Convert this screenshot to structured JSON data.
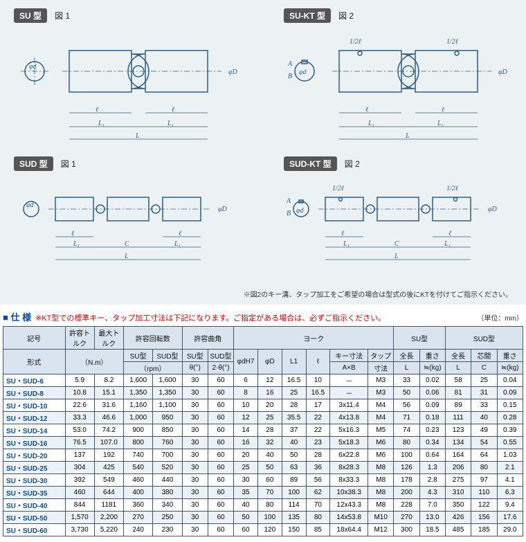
{
  "diagrams": {
    "bg_color": "#ecf2f4",
    "line_color": "#2b5c8a",
    "badge_bg": "#555555",
    "badge_fg": "#ffffff",
    "su": {
      "badge": "SU 型",
      "fig": "図 1"
    },
    "sukt": {
      "badge": "SU-KT 型",
      "fig": "図 2"
    },
    "sud": {
      "badge": "SUD 型",
      "fig": "図 1"
    },
    "sudkt": {
      "badge": "SUD-KT 型",
      "fig": "図 2"
    },
    "dims": {
      "d": "φd",
      "D": "φD",
      "l": "ℓ",
      "L1": "L₁",
      "L": "L",
      "C": "C",
      "A": "A",
      "B": "B",
      "half_l": "1/2ℓ"
    },
    "footnote": "※図2のキー溝、タップ加工をご希望の場合は型式の後にKTを付けてご指示ください。"
  },
  "spec": {
    "title": "■ 仕  様",
    "warn": "※KT型での標準キー、タップ加工寸法は下記になります。ご指定がある場合は、必ずご指示ください。",
    "unit": "（単位：mm）",
    "header": {
      "model_top": "記号",
      "model_bottom": "形式",
      "torque_allow": "許容トルク",
      "torque_max": "最大トルク",
      "nm": "（N.m）",
      "rpm_group": "許容回転数",
      "su_type": "SU型",
      "sud_type": "SUD型",
      "rpm": "（rpm）",
      "bend_group": "許容曲角",
      "theta": "θ(°)",
      "theta2": "2·θ(°)",
      "yoke_group": "ヨーク",
      "phi_dH7": "φdH7",
      "phi_D": "φD",
      "L1": "L1",
      "ell": "ℓ",
      "key": "キー寸法",
      "AxB": "A×B",
      "tap": "タップ",
      "tap_dim": "寸法",
      "su_group": "SU型",
      "sud_group": "SUD型",
      "total_len": "全長",
      "weight": "重さ",
      "core": "芯間",
      "L": "L",
      "approx_kg": "≒(kg)",
      "C": "C"
    },
    "rows": [
      {
        "m": "SU・SUD-6",
        "ta": "5.9",
        "tm": "8.2",
        "rsu": "1,600",
        "rsud": "1,600",
        "asu": "30",
        "asud": "60",
        "d": "6",
        "D": "12",
        "L1": "16.5",
        "l": "10",
        "key": "－",
        "tap": "M3",
        "suL": "33",
        "suW": "0.02",
        "sudL": "58",
        "sudC": "25",
        "sudW": "0.04"
      },
      {
        "m": "SU・SUD-8",
        "ta": "10.8",
        "tm": "15.1",
        "rsu": "1,350",
        "rsud": "1,350",
        "asu": "30",
        "asud": "60",
        "d": "8",
        "D": "16",
        "L1": "25",
        "l": "16.5",
        "key": "－",
        "tap": "M3",
        "suL": "50",
        "suW": "0.06",
        "sudL": "81",
        "sudC": "31",
        "sudW": "0.09"
      },
      {
        "m": "SU・SUD-10",
        "ta": "22.6",
        "tm": "31.6",
        "rsu": "1,160",
        "rsud": "1,100",
        "asu": "30",
        "asud": "60",
        "d": "10",
        "D": "20",
        "L1": "28",
        "l": "17",
        "key": "3x11.4",
        "tap": "M4",
        "suL": "56",
        "suW": "0.09",
        "sudL": "89",
        "sudC": "33",
        "sudW": "0.15"
      },
      {
        "m": "SU・SUD-12",
        "ta": "33.3",
        "tm": "46.6",
        "rsu": "1,000",
        "rsud": "950",
        "asu": "30",
        "asud": "60",
        "d": "12",
        "D": "25",
        "L1": "35.5",
        "l": "22",
        "key": "4x13.8",
        "tap": "M4",
        "suL": "71",
        "suW": "0.18",
        "sudL": "111",
        "sudC": "40",
        "sudW": "0.28"
      },
      {
        "m": "SU・SUD-14",
        "ta": "53.0",
        "tm": "74.2",
        "rsu": "900",
        "rsud": "850",
        "asu": "30",
        "asud": "60",
        "d": "14",
        "D": "28",
        "L1": "37",
        "l": "22",
        "key": "5x16.3",
        "tap": "M5",
        "suL": "74",
        "suW": "0.23",
        "sudL": "123",
        "sudC": "49",
        "sudW": "0.39"
      },
      {
        "m": "SU・SUD-16",
        "ta": "76.5",
        "tm": "107.0",
        "rsu": "800",
        "rsud": "760",
        "asu": "30",
        "asud": "60",
        "d": "16",
        "D": "32",
        "L1": "40",
        "l": "23",
        "key": "5x18.3",
        "tap": "M6",
        "suL": "80",
        "suW": "0.34",
        "sudL": "134",
        "sudC": "54",
        "sudW": "0.55"
      },
      {
        "m": "SU・SUD-20",
        "ta": "137",
        "tm": "192",
        "rsu": "740",
        "rsud": "700",
        "asu": "30",
        "asud": "60",
        "d": "20",
        "D": "40",
        "L1": "50",
        "l": "28",
        "key": "6x22.8",
        "tap": "M6",
        "suL": "100",
        "suW": "0.64",
        "sudL": "164",
        "sudC": "64",
        "sudW": "1.03"
      },
      {
        "m": "SU・SUD-25",
        "ta": "304",
        "tm": "425",
        "rsu": "540",
        "rsud": "520",
        "asu": "30",
        "asud": "60",
        "d": "25",
        "D": "50",
        "L1": "63",
        "l": "36",
        "key": "8x28.3",
        "tap": "M8",
        "suL": "126",
        "suW": "1.3",
        "sudL": "206",
        "sudC": "80",
        "sudW": "2.1"
      },
      {
        "m": "SU・SUD-30",
        "ta": "392",
        "tm": "549",
        "rsu": "460",
        "rsud": "440",
        "asu": "30",
        "asud": "60",
        "d": "30",
        "D": "60",
        "L1": "89",
        "l": "56",
        "key": "8x33.3",
        "tap": "M8",
        "suL": "178",
        "suW": "2.8",
        "sudL": "275",
        "sudC": "97",
        "sudW": "4.1"
      },
      {
        "m": "SU・SUD-35",
        "ta": "460",
        "tm": "644",
        "rsu": "400",
        "rsud": "380",
        "asu": "30",
        "asud": "60",
        "d": "35",
        "D": "70",
        "L1": "100",
        "l": "62",
        "key": "10x38.3",
        "tap": "M8",
        "suL": "200",
        "suW": "4.3",
        "sudL": "310",
        "sudC": "110",
        "sudW": "6.3"
      },
      {
        "m": "SU・SUD-40",
        "ta": "844",
        "tm": "1181",
        "rsu": "360",
        "rsud": "340",
        "asu": "30",
        "asud": "60",
        "d": "40",
        "D": "80",
        "L1": "114",
        "l": "70",
        "key": "12x43.3",
        "tap": "M8",
        "suL": "228",
        "suW": "7.0",
        "sudL": "350",
        "sudC": "122",
        "sudW": "9.4"
      },
      {
        "m": "SU・SUD-50",
        "ta": "1,570",
        "tm": "2,200",
        "rsu": "270",
        "rsud": "250",
        "asu": "30",
        "asud": "60",
        "d": "50",
        "D": "100",
        "L1": "135",
        "l": "80",
        "key": "14x53.8",
        "tap": "M10",
        "suL": "270",
        "suW": "13.0",
        "sudL": "426",
        "sudC": "156",
        "sudW": "17.6"
      },
      {
        "m": "SU・SUD-60",
        "ta": "3,730",
        "tm": "5,220",
        "rsu": "240",
        "rsud": "230",
        "asu": "30",
        "asud": "60",
        "d": "60",
        "D": "120",
        "L1": "150",
        "l": "85",
        "key": "18x64.4",
        "tap": "M12",
        "suL": "300",
        "suW": "18.5",
        "sudL": "485",
        "sudC": "185",
        "sudW": "29.0"
      }
    ],
    "header_bg": "#d9e4ef",
    "border_color": "#445566",
    "alt_row_bg": "#eaf1f7",
    "label_color": "#0a4b9e"
  }
}
